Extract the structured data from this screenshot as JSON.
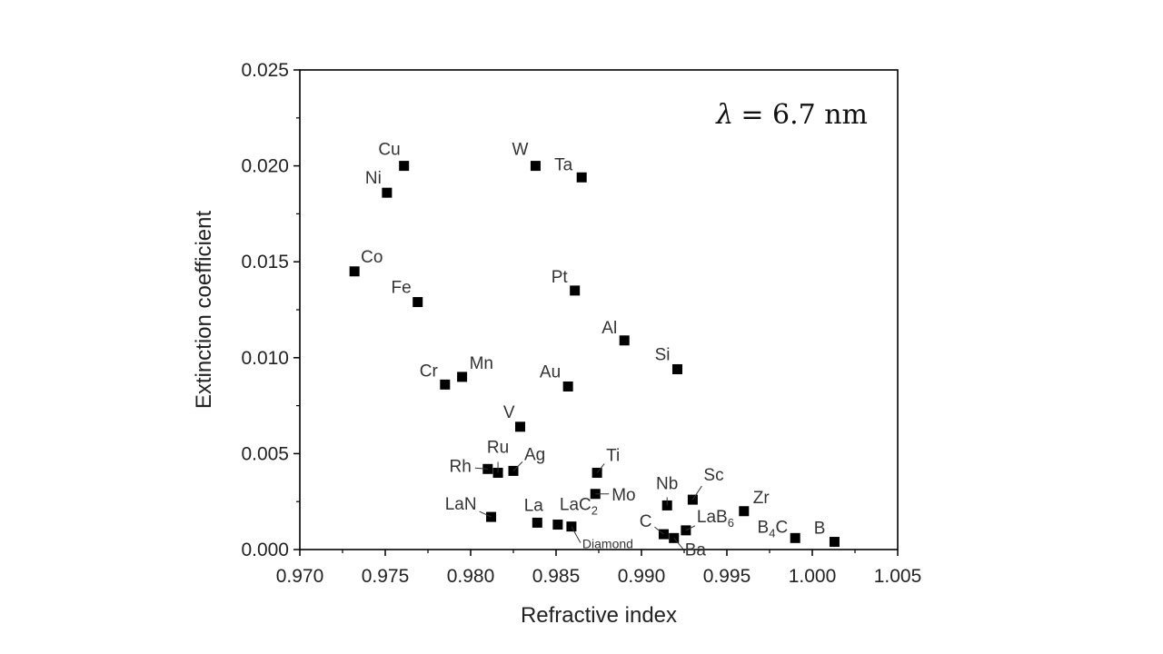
{
  "chart_data": {
    "type": "scatter",
    "title": "",
    "xlabel": "Refractive index",
    "ylabel": "Extinction coefficient",
    "xlim": [
      0.97,
      1.005
    ],
    "ylim": [
      0.0,
      0.025
    ],
    "x_ticks": [
      "0.970",
      "0.975",
      "0.980",
      "0.985",
      "0.990",
      "0.995",
      "1.000",
      "1.005"
    ],
    "y_ticks": [
      "0.000",
      "0.005",
      "0.010",
      "0.015",
      "0.020",
      "0.025"
    ],
    "annotation": {
      "symbol": "λ",
      "text": "= 6.7 nm"
    },
    "grid": false,
    "marker_color": "#000000",
    "points": [
      {
        "label": "Cu",
        "label_sub": "",
        "x": 0.9761,
        "y": 0.02
      },
      {
        "label": "Ni",
        "label_sub": "",
        "x": 0.9751,
        "y": 0.0186
      },
      {
        "label": "W",
        "label_sub": "",
        "x": 0.9838,
        "y": 0.02
      },
      {
        "label": "Ta",
        "label_sub": "",
        "x": 0.9865,
        "y": 0.0194
      },
      {
        "label": "Co",
        "label_sub": "",
        "x": 0.9732,
        "y": 0.0145
      },
      {
        "label": "Fe",
        "label_sub": "",
        "x": 0.9769,
        "y": 0.0129
      },
      {
        "label": "Pt",
        "label_sub": "",
        "x": 0.9861,
        "y": 0.0135
      },
      {
        "label": "Al",
        "label_sub": "",
        "x": 0.989,
        "y": 0.0109
      },
      {
        "label": "Si",
        "label_sub": "",
        "x": 0.9921,
        "y": 0.0094
      },
      {
        "label": "Cr",
        "label_sub": "",
        "x": 0.9785,
        "y": 0.0086
      },
      {
        "label": "Mn",
        "label_sub": "",
        "x": 0.9795,
        "y": 0.009
      },
      {
        "label": "Au",
        "label_sub": "",
        "x": 0.9857,
        "y": 0.0085
      },
      {
        "label": "V",
        "label_sub": "",
        "x": 0.9829,
        "y": 0.0064
      },
      {
        "label": "Rh",
        "label_sub": "",
        "x": 0.981,
        "y": 0.0042
      },
      {
        "label": "Ru",
        "label_sub": "",
        "x": 0.9816,
        "y": 0.004
      },
      {
        "label": "Ag",
        "label_sub": "",
        "x": 0.9825,
        "y": 0.0041
      },
      {
        "label": "Ti",
        "label_sub": "",
        "x": 0.9874,
        "y": 0.004
      },
      {
        "label": "Mo",
        "label_sub": "",
        "x": 0.9873,
        "y": 0.0029
      },
      {
        "label": "Nb",
        "label_sub": "",
        "x": 0.9915,
        "y": 0.0023
      },
      {
        "label": "Sc",
        "label_sub": "",
        "x": 0.993,
        "y": 0.0026
      },
      {
        "label": "Zr",
        "label_sub": "",
        "x": 0.996,
        "y": 0.002
      },
      {
        "label": "LaN",
        "label_sub": "",
        "x": 0.9812,
        "y": 0.0017
      },
      {
        "label": "La",
        "label_sub": "",
        "x": 0.9839,
        "y": 0.0014
      },
      {
        "label": "LaC",
        "label_sub": "2",
        "x": 0.9851,
        "y": 0.0013
      },
      {
        "label": "Diamond",
        "label_sub": "",
        "x": 0.9859,
        "y": 0.0012
      },
      {
        "label": "C",
        "label_sub": "",
        "x": 0.9913,
        "y": 0.0008
      },
      {
        "label": "Ba",
        "label_sub": "",
        "x": 0.9919,
        "y": 0.0006
      },
      {
        "label": "LaB",
        "label_sub": "6",
        "x": 0.9926,
        "y": 0.001
      },
      {
        "label": "B",
        "label_sub": "4C",
        "x": 0.999,
        "y": 0.0006
      },
      {
        "label": "B",
        "label_sub": "",
        "x": 1.0013,
        "y": 0.0004
      }
    ]
  }
}
